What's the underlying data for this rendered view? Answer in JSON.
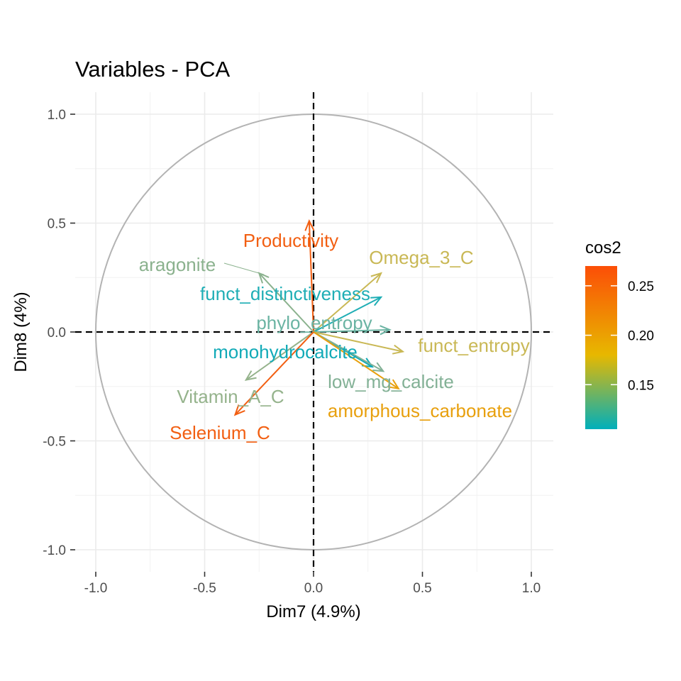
{
  "chart_data": {
    "type": "scatter",
    "subtype": "pca-variable-correlation-circle",
    "title": "Variables - PCA",
    "xlabel": "Dim7 (4.9%)",
    "ylabel": "Dim8 (4%)",
    "xlim": [
      -1.0,
      1.0
    ],
    "ylim": [
      -1.0,
      1.0
    ],
    "x_ticks": [
      -1.0,
      -0.5,
      0.0,
      0.5,
      1.0
    ],
    "y_ticks": [
      -1.0,
      -0.5,
      0.0,
      0.5,
      1.0
    ],
    "x_tick_labels": [
      "-1.0",
      "-0.5",
      "0.0",
      "0.5",
      "1.0"
    ],
    "y_tick_labels": [
      "-1.0",
      "-0.5",
      "0.0",
      "0.5",
      "1.0"
    ],
    "grid": true,
    "unit_circle": true,
    "color_scale": {
      "title": "cos2",
      "min": 0.105,
      "max": 0.27,
      "stops": [
        {
          "value": 0.105,
          "color": "#00AFBB"
        },
        {
          "value": 0.18,
          "color": "#E7B800"
        },
        {
          "value": 0.27,
          "color": "#FC4E07"
        }
      ],
      "tick_values": [
        0.15,
        0.2,
        0.25
      ],
      "tick_labels": [
        "0.15",
        "0.20",
        "0.25"
      ],
      "legend_position": "right"
    },
    "variables": [
      {
        "name": "Productivity",
        "x": -0.02,
        "y": 0.51,
        "cos2": 0.265,
        "color": "#F25F12"
      },
      {
        "name": "aragonite",
        "x": -0.25,
        "y": 0.27,
        "cos2": 0.135,
        "color": "#8BB28E"
      },
      {
        "name": "Omega_3_C",
        "x": 0.31,
        "y": 0.27,
        "cos2": 0.17,
        "color": "#C9B855"
      },
      {
        "name": "funct_distinctiveness",
        "x": 0.31,
        "y": 0.16,
        "cos2": 0.11,
        "color": "#1FAEB5"
      },
      {
        "name": "phylo_entropy",
        "x": 0.35,
        "y": 0.01,
        "cos2": 0.125,
        "color": "#6BB4A3"
      },
      {
        "name": "funct_entropy",
        "x": 0.41,
        "y": -0.09,
        "cos2": 0.17,
        "color": "#C9B855"
      },
      {
        "name": "monohydrocalcite",
        "x": 0.27,
        "y": -0.16,
        "cos2": 0.105,
        "color": "#11AAB7"
      },
      {
        "name": "low_mg_calcite",
        "x": 0.32,
        "y": -0.18,
        "cos2": 0.135,
        "color": "#83B196"
      },
      {
        "name": "amorphous_carbonate",
        "x": 0.39,
        "y": -0.26,
        "cos2": 0.21,
        "color": "#E8A00E"
      },
      {
        "name": "Vitamin_A_C",
        "x": -0.31,
        "y": -0.22,
        "cos2": 0.14,
        "color": "#95B38C"
      },
      {
        "name": "Selenium_C",
        "x": -0.36,
        "y": -0.38,
        "cos2": 0.265,
        "color": "#F25F12"
      }
    ]
  }
}
